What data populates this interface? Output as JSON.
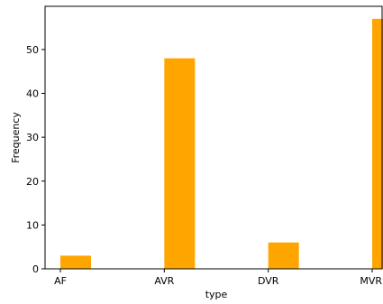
{
  "chart_data": {
    "type": "bar",
    "categories": [
      "AF",
      "AVR",
      "DVR",
      "MVR"
    ],
    "values": [
      3,
      48,
      6,
      57
    ],
    "title": "",
    "xlabel": "type",
    "ylabel": "Frequency",
    "yticks": [
      0,
      10,
      20,
      30,
      40,
      50
    ],
    "ylim": [
      0,
      59.85
    ],
    "grid": false,
    "bar_color": "#FFA500"
  }
}
